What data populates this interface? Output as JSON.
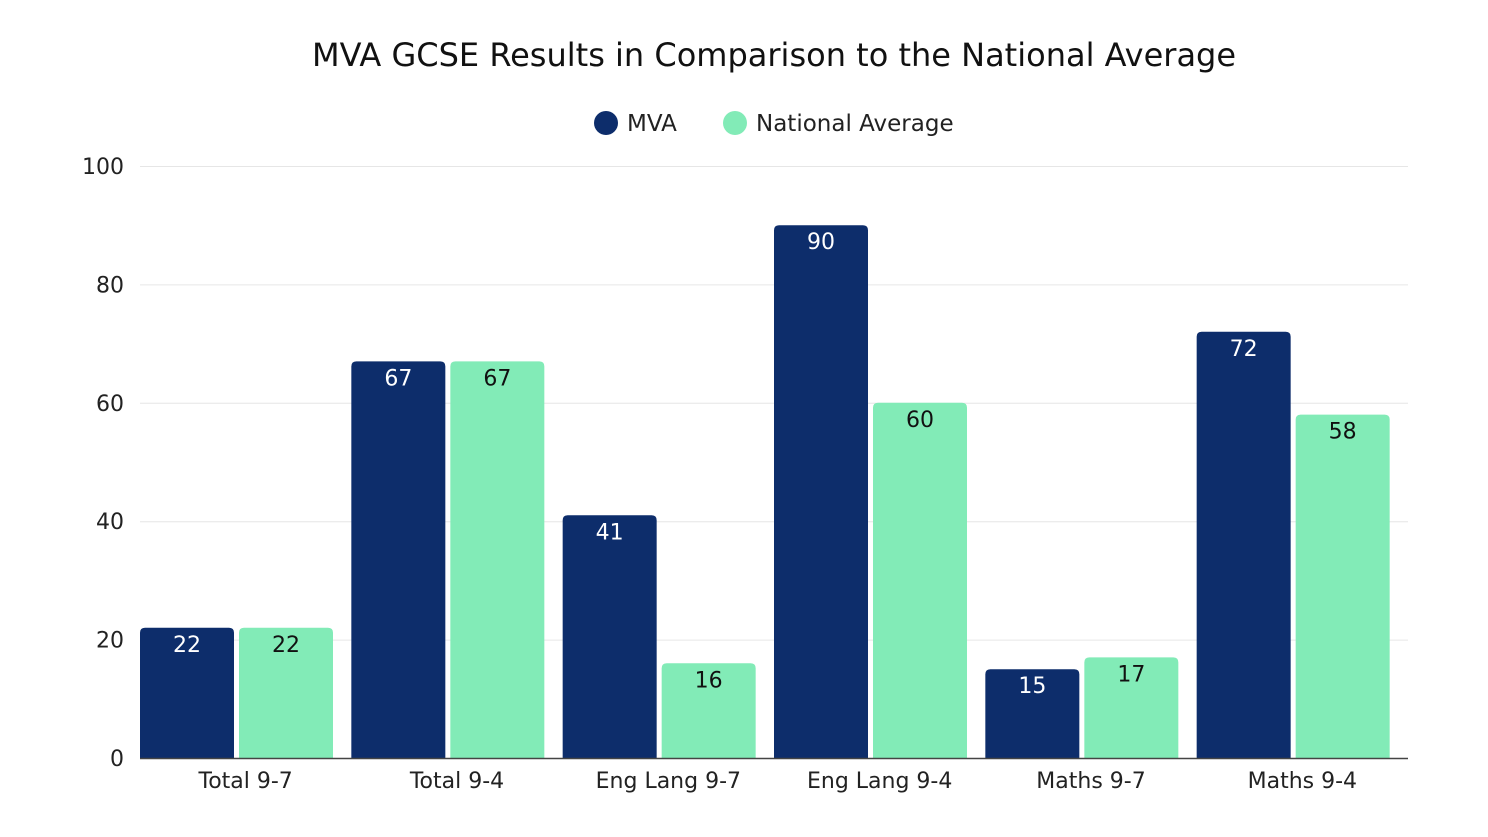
{
  "chart_data": {
    "type": "bar",
    "title": "MVA GCSE Results in Comparison to the National Average",
    "categories": [
      "Total 9-7",
      "Total 9-4",
      "Eng Lang 9-7",
      "Eng Lang 9-4",
      "Maths 9-7",
      "Maths 9-4"
    ],
    "series": [
      {
        "name": "MVA",
        "color": "#0d2d6b",
        "label_color": "#ffffff",
        "values": [
          22,
          67,
          41,
          90,
          15,
          72
        ]
      },
      {
        "name": "National Average",
        "color": "#82ebb7",
        "label_color": "#111111",
        "values": [
          22,
          67,
          16,
          60,
          17,
          58
        ]
      }
    ],
    "ylim": [
      0,
      100
    ],
    "yticks": [
      0,
      20,
      40,
      60,
      80,
      100
    ],
    "xlabel": "",
    "ylabel": "",
    "grid": true,
    "legend": "top-center"
  }
}
